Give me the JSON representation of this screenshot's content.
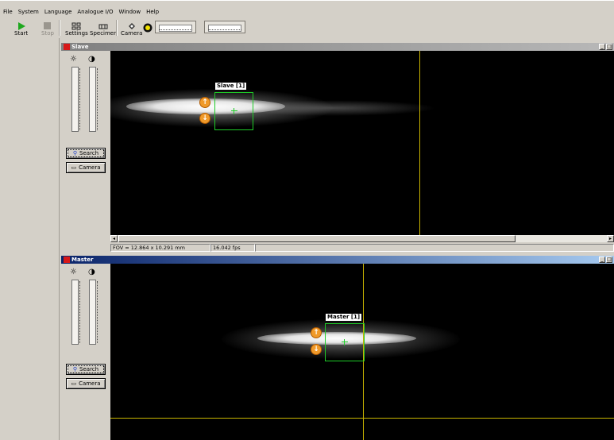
{
  "menu": [
    "File",
    "System",
    "Language",
    "Analogue I/O",
    "Window",
    "Help"
  ],
  "toolbar": {
    "start_label": "Start",
    "stop_label": "Stop",
    "settings_label": "Settings",
    "specimen_label": "Specimen",
    "camera_label": "Camera"
  },
  "slave": {
    "title": "Slave",
    "roi_label": "Slave [1]",
    "search_label": "Search",
    "camera_label": "Camera",
    "fov": "FOV = 12.864 x 10.291 mm",
    "fps": "16.042 fps"
  },
  "master": {
    "title": "Master",
    "roi_label": "Master [1]",
    "search_label": "Search",
    "camera_label": "Camera"
  },
  "window_buttons": {
    "minimize": "_",
    "maximize": "□"
  },
  "icons": {
    "start": "play-icon",
    "stop": "stop-icon",
    "settings": "settings-icon",
    "specimen": "specimen-icon",
    "camera": "camera-switch-icon",
    "light": "light-icon",
    "brightness": "brightness-icon",
    "contrast": "contrast-icon",
    "search": "binoculars-icon",
    "camera_btn": "camera-icon",
    "close": "close-icon"
  },
  "colors": {
    "roi": "#1fcc28",
    "crosshair": "#c8b400",
    "active_title": "#0a246a",
    "inactive_title": "#808080",
    "close": "#d81818",
    "marker": "#f09a2a"
  }
}
